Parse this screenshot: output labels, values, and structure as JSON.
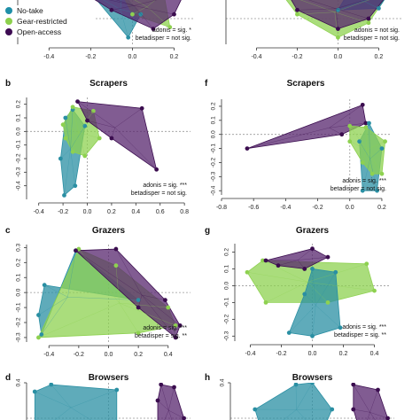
{
  "legend": {
    "items": [
      {
        "label": "No-take",
        "color": "#1f8fa8"
      },
      {
        "label": "Gear-restricted",
        "color": "#8cd04c"
      },
      {
        "label": "Open-access",
        "color": "#3d0b52"
      }
    ]
  },
  "colors": {
    "no_take": "#2a8fa3",
    "gear_restricted": "#8ed150",
    "open_access": "#57266e",
    "open_access_dark": "#3b0d4f",
    "refline": "#999999"
  },
  "chart_data": [
    {
      "id": "a-top",
      "type": "scatter",
      "letter": "",
      "title": "",
      "xticks": [
        "-0.4",
        "-0.2",
        "0.0",
        "0.2"
      ],
      "xlim": [
        -0.55,
        0.3
      ],
      "yticks": [],
      "ylim": [
        -0.3,
        0.3
      ],
      "stats": [
        "adonis = sig. *",
        "betadisper = not sig."
      ],
      "hulls": [
        {
          "group": "No-take",
          "points": [
            [
              -0.2,
              0.3
            ],
            [
              -0.02,
              -0.22
            ],
            [
              0.04,
              0.05
            ],
            [
              -0.05,
              0.3
            ]
          ]
        },
        {
          "group": "Gear-restricted",
          "points": [
            [
              -0.05,
              0.3
            ],
            [
              0.0,
              0.05
            ],
            [
              0.18,
              -0.1
            ],
            [
              0.15,
              0.3
            ]
          ]
        },
        {
          "group": "Open-access",
          "points": [
            [
              -0.22,
              0.28
            ],
            [
              -0.18,
              0.3
            ],
            [
              0.25,
              0.3
            ],
            [
              0.2,
              0.05
            ],
            [
              0.1,
              -0.12
            ],
            [
              -0.1,
              0.1
            ]
          ]
        }
      ]
    },
    {
      "id": "e-top",
      "type": "scatter",
      "letter": "",
      "title": "",
      "xticks": [
        "-0.4",
        "-0.2",
        "0.0",
        "0.2"
      ],
      "xlim": [
        -0.55,
        0.32
      ],
      "yticks": [],
      "ylim": [
        -0.3,
        0.3
      ],
      "stats": [
        "adonis = not sig.",
        "betadisper = not sig."
      ],
      "hulls": [
        {
          "group": "Gear-restricted",
          "points": [
            [
              -0.28,
              0.3
            ],
            [
              -0.2,
              0.05
            ],
            [
              0.0,
              -0.22
            ],
            [
              0.15,
              -0.05
            ],
            [
              0.25,
              0.3
            ]
          ]
        },
        {
          "group": "No-take",
          "points": [
            [
              0.0,
              0.1
            ],
            [
              0.2,
              0.12
            ],
            [
              0.25,
              0.3
            ],
            [
              0.05,
              0.3
            ]
          ]
        },
        {
          "group": "Open-access",
          "points": [
            [
              -0.25,
              0.3
            ],
            [
              -0.2,
              0.1
            ],
            [
              0.0,
              -0.12
            ],
            [
              0.15,
              0.0
            ],
            [
              0.25,
              0.3
            ]
          ]
        }
      ]
    },
    {
      "id": "b",
      "type": "scatter",
      "letter": "b",
      "title": "Scrapers",
      "xticks": [
        "-0.4",
        "-0.2",
        "0.0",
        "0.2",
        "0.4",
        "0.6",
        "0.8"
      ],
      "xlim": [
        -0.5,
        0.85
      ],
      "yticks": [
        "0.2",
        "0.1",
        "0.0",
        "-0.1",
        "-0.2",
        "-0.3",
        "-0.4"
      ],
      "ylim": [
        -0.5,
        0.25
      ],
      "stats": [
        "adonis = sig. ***",
        "betadisper = not sig."
      ],
      "hulls": [
        {
          "group": "No-take",
          "points": [
            [
              -0.12,
              0.16
            ],
            [
              -0.02,
              0.04
            ],
            [
              -0.1,
              -0.4
            ],
            [
              -0.19,
              -0.47
            ],
            [
              -0.22,
              -0.2
            ],
            [
              -0.18,
              0.1
            ]
          ]
        },
        {
          "group": "Gear-restricted",
          "points": [
            [
              -0.12,
              0.18
            ],
            [
              0.05,
              0.15
            ],
            [
              0.1,
              -0.05
            ],
            [
              -0.02,
              -0.18
            ],
            [
              -0.12,
              -0.15
            ],
            [
              -0.18,
              -0.05
            ],
            [
              -0.2,
              0.05
            ]
          ]
        },
        {
          "group": "Open-access",
          "points": [
            [
              -0.08,
              0.22
            ],
            [
              0.45,
              0.17
            ],
            [
              0.57,
              -0.28
            ],
            [
              0.2,
              -0.05
            ],
            [
              0.0,
              0.08
            ]
          ]
        }
      ]
    },
    {
      "id": "f",
      "type": "scatter",
      "letter": "f",
      "title": "Scrapers",
      "xticks": [
        "-0.8",
        "-0.6",
        "-0.4",
        "-0.2",
        "0.0",
        "0.2"
      ],
      "xlim": [
        -0.8,
        0.25
      ],
      "yticks": [
        "0.2",
        "0.1",
        "0.0",
        "-0.1",
        "-0.2",
        "-0.3",
        "-0.4"
      ],
      "ylim": [
        -0.43,
        0.25
      ],
      "stats": [
        "adonis = sig. ***",
        "betadisper = not sig."
      ],
      "hulls": [
        {
          "group": "Open-access",
          "points": [
            [
              -0.64,
              -0.1
            ],
            [
              0.08,
              0.21
            ],
            [
              0.1,
              0.08
            ],
            [
              -0.05,
              0.0
            ]
          ]
        },
        {
          "group": "No-take",
          "points": [
            [
              0.12,
              0.08
            ],
            [
              0.2,
              -0.1
            ],
            [
              0.17,
              -0.4
            ],
            [
              0.08,
              -0.4
            ],
            [
              0.06,
              -0.05
            ]
          ]
        },
        {
          "group": "Gear-restricted",
          "points": [
            [
              0.0,
              0.06
            ],
            [
              0.1,
              0.05
            ],
            [
              0.22,
              -0.05
            ],
            [
              0.2,
              -0.28
            ],
            [
              0.14,
              -0.28
            ],
            [
              0.08,
              -0.2
            ],
            [
              0.0,
              -0.05
            ]
          ]
        }
      ]
    },
    {
      "id": "c",
      "type": "scatter",
      "letter": "c",
      "title": "Grazers",
      "xticks": [
        "-0.4",
        "-0.2",
        "0.0",
        "0.2",
        "0.4"
      ],
      "xlim": [
        -0.55,
        0.55
      ],
      "yticks": [
        "0.3",
        "0.2",
        "0.1",
        "0.0",
        "-0.1",
        "-0.2",
        "-0.3"
      ],
      "ylim": [
        -0.33,
        0.32
      ],
      "stats": [
        "adonis = sig. ***",
        "betadisper = sig. **"
      ],
      "hulls": [
        {
          "group": "No-take",
          "points": [
            [
              -0.22,
              0.28
            ],
            [
              -0.45,
              -0.28
            ],
            [
              -0.47,
              -0.15
            ],
            [
              -0.43,
              0.05
            ],
            [
              0.2,
              -0.05
            ]
          ]
        },
        {
          "group": "Gear-restricted",
          "points": [
            [
              -0.2,
              0.29
            ],
            [
              -0.47,
              -0.3
            ],
            [
              0.2,
              -0.27
            ],
            [
              0.45,
              -0.22
            ],
            [
              0.4,
              -0.1
            ],
            [
              0.05,
              0.18
            ]
          ]
        },
        {
          "group": "Open-access",
          "points": [
            [
              -0.22,
              0.28
            ],
            [
              0.05,
              0.29
            ],
            [
              0.38,
              -0.05
            ],
            [
              0.48,
              -0.22
            ],
            [
              0.45,
              -0.3
            ],
            [
              0.2,
              -0.1
            ]
          ]
        }
      ]
    },
    {
      "id": "g",
      "type": "scatter",
      "letter": "g",
      "title": "Grazers",
      "xticks": [
        "-0.4",
        "-0.2",
        "0.0",
        "0.2",
        "0.4"
      ],
      "xlim": [
        -0.5,
        0.5
      ],
      "yticks": [
        "0.2",
        "0.1",
        "0.0",
        "-0.1",
        "-0.2",
        "-0.3"
      ],
      "ylim": [
        -0.33,
        0.25
      ],
      "stats": [
        "adonis = sig. ***",
        "betadisper = sig. **"
      ],
      "hulls": [
        {
          "group": "Gear-restricted",
          "points": [
            [
              -0.32,
              0.15
            ],
            [
              0.35,
              0.13
            ],
            [
              0.4,
              -0.03
            ],
            [
              0.1,
              -0.1
            ],
            [
              -0.3,
              -0.1
            ],
            [
              -0.42,
              0.08
            ]
          ]
        },
        {
          "group": "No-take",
          "points": [
            [
              0.0,
              0.1
            ],
            [
              0.15,
              0.08
            ],
            [
              0.18,
              -0.25
            ],
            [
              0.0,
              -0.3
            ],
            [
              -0.15,
              -0.28
            ],
            [
              -0.05,
              -0.05
            ]
          ]
        },
        {
          "group": "Open-access",
          "points": [
            [
              -0.3,
              0.15
            ],
            [
              0.0,
              0.22
            ],
            [
              0.1,
              0.17
            ],
            [
              -0.05,
              0.1
            ],
            [
              -0.22,
              0.12
            ]
          ]
        }
      ]
    },
    {
      "id": "d",
      "type": "scatter",
      "letter": "d",
      "title": "Browsers",
      "xticks": [],
      "xlim": [
        -0.5,
        0.5
      ],
      "yticks": [
        "0.4"
      ],
      "ylim": [
        -0.2,
        0.4
      ],
      "stats": [],
      "hulls": [
        {
          "group": "No-take",
          "points": [
            [
              -0.45,
              0.3
            ],
            [
              -0.35,
              0.38
            ],
            [
              0.05,
              0.32
            ],
            [
              0.05,
              -0.2
            ],
            [
              -0.45,
              -0.2
            ]
          ]
        },
        {
          "group": "Open-access",
          "points": [
            [
              0.32,
              0.38
            ],
            [
              0.4,
              0.35
            ],
            [
              0.46,
              0.0
            ],
            [
              0.42,
              -0.2
            ],
            [
              0.3,
              -0.2
            ],
            [
              0.3,
              0.2
            ]
          ]
        }
      ]
    },
    {
      "id": "h",
      "type": "scatter",
      "letter": "h",
      "title": "Browsers",
      "xticks": [],
      "xlim": [
        -0.5,
        0.5
      ],
      "yticks": [
        "0.4"
      ],
      "ylim": [
        -0.2,
        0.4
      ],
      "stats": [],
      "hulls": [
        {
          "group": "No-take",
          "points": [
            [
              -0.1,
              0.38
            ],
            [
              0.0,
              0.4
            ],
            [
              0.12,
              0.1
            ],
            [
              0.05,
              -0.2
            ],
            [
              -0.3,
              -0.2
            ],
            [
              -0.35,
              0.1
            ]
          ]
        },
        {
          "group": "Open-access",
          "points": [
            [
              0.25,
              0.38
            ],
            [
              0.4,
              0.32
            ],
            [
              0.46,
              0.0
            ],
            [
              0.45,
              -0.2
            ],
            [
              0.3,
              -0.2
            ],
            [
              0.25,
              0.1
            ]
          ]
        }
      ]
    }
  ]
}
